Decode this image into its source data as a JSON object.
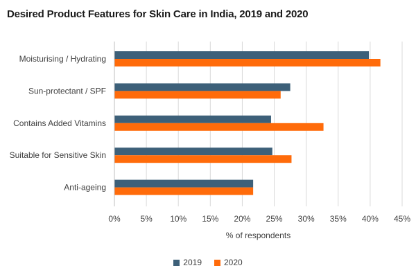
{
  "chart_data": {
    "type": "bar",
    "orientation": "horizontal",
    "title": "Desired Product Features for Skin Care in India, 2019 and 2020",
    "xlabel": "% of respondents",
    "ylabel": "",
    "xlim": [
      0,
      45
    ],
    "tick_step": 5,
    "tick_suffix": "%",
    "grid": true,
    "legend_position": "bottom",
    "categories": [
      "Moisturising / Hydrating",
      "Sun-protectant / SPF",
      "Contains Added Vitamins",
      "Suitable for Sensitive Skin",
      "Anti-ageing"
    ],
    "series": [
      {
        "name": "2019",
        "color": "#3d6079",
        "values": [
          39.8,
          27.5,
          24.5,
          24.7,
          21.7
        ]
      },
      {
        "name": "2020",
        "color": "#ff6b0a",
        "values": [
          41.6,
          26.0,
          32.7,
          27.7,
          21.7
        ]
      }
    ]
  }
}
